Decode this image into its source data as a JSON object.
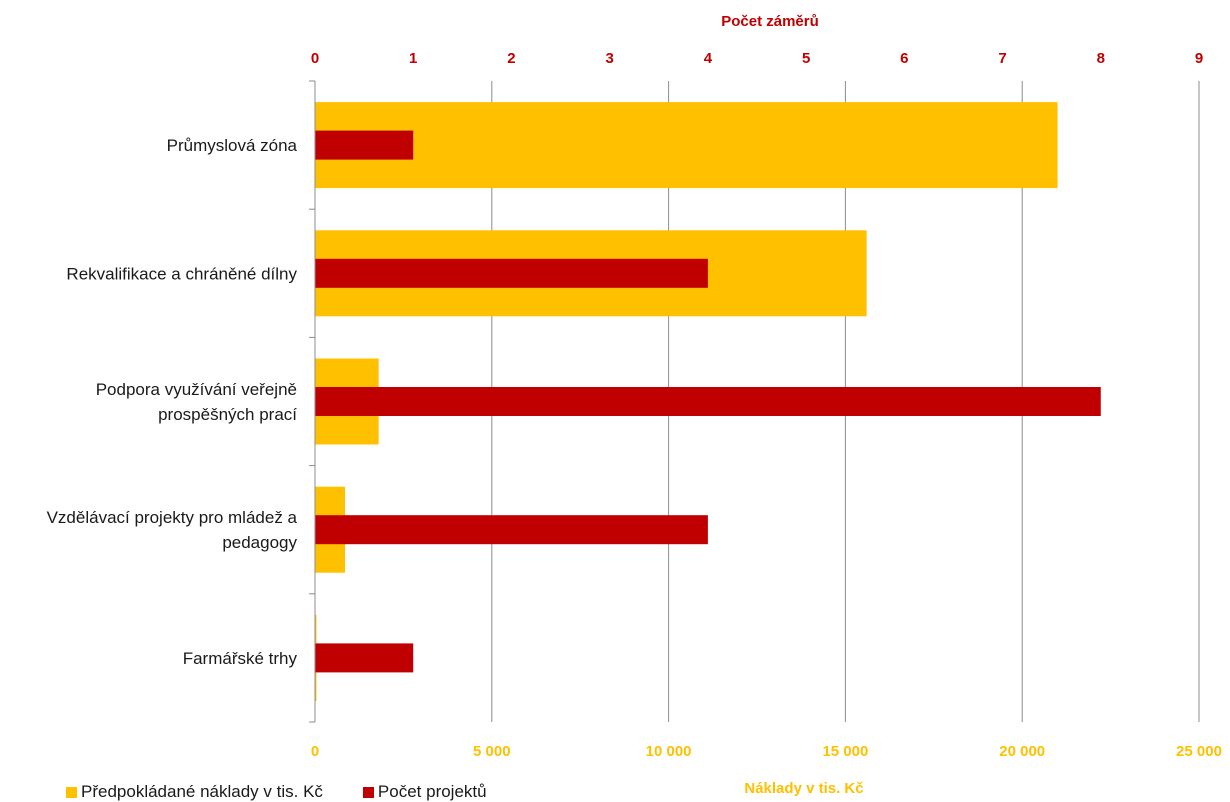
{
  "chart_data": {
    "type": "bar",
    "orientation": "horizontal",
    "categories": [
      [
        "Průmyslová zóna"
      ],
      [
        "Rekvalifikace a chráněné dílny"
      ],
      [
        "Podpora využívání veřejně",
        "prospěšných prací"
      ],
      [
        "Vzdělávací projekty pro mládež a",
        "pedagogy"
      ],
      [
        "Farmářské trhy"
      ]
    ],
    "series": [
      {
        "name": "Předpokládané náklady v tis. Kč",
        "axis": "bottom",
        "color": "#ffc000",
        "values": [
          21000,
          15600,
          1800,
          850,
          40
        ]
      },
      {
        "name": "Počet projektů",
        "axis": "top",
        "color": "#c00000",
        "values": [
          1,
          4,
          8,
          4,
          1
        ]
      }
    ],
    "x_bottom": {
      "label": "Náklady v tis. Kč",
      "lim": [
        0,
        25000
      ],
      "ticks": [
        0,
        5000,
        10000,
        15000,
        20000,
        25000
      ],
      "tick_labels": [
        "0",
        "5 000",
        "10 000",
        "15 000",
        "20 000",
        "25 000"
      ]
    },
    "x_top": {
      "label": "Počet záměrů",
      "lim": [
        0,
        9
      ],
      "ticks": [
        0,
        1,
        2,
        3,
        4,
        5,
        6,
        7,
        8,
        9
      ],
      "tick_labels": [
        "0",
        "1",
        "2",
        "3",
        "4",
        "5",
        "6",
        "7",
        "8",
        "9"
      ]
    },
    "grid": true,
    "legend_position": "bottom-left"
  }
}
